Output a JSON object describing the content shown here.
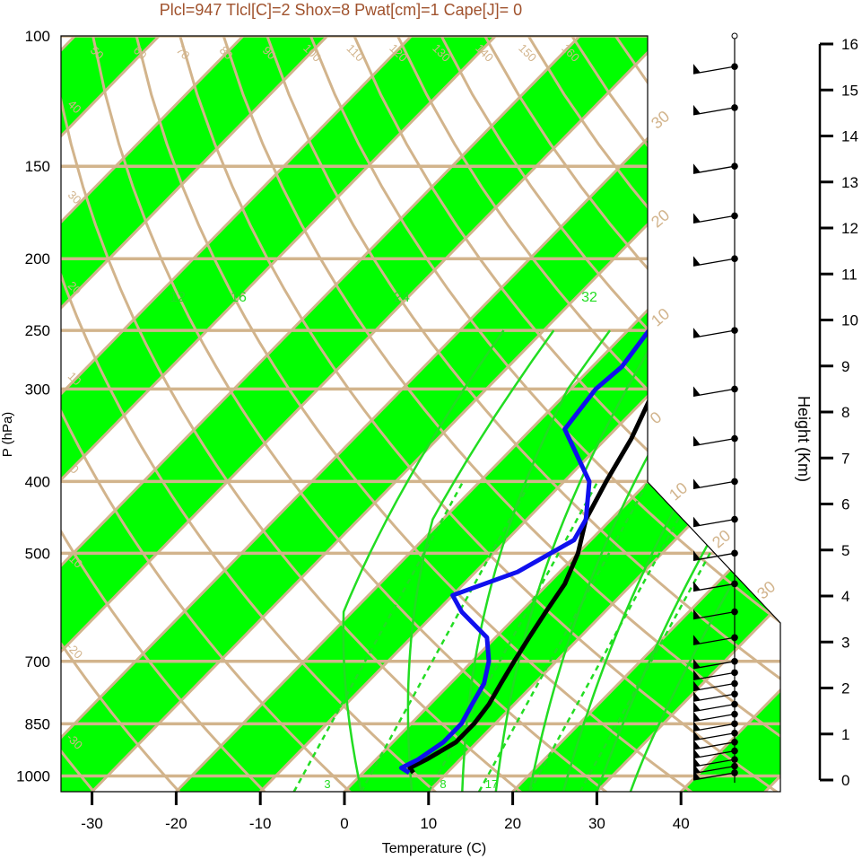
{
  "chart_data": {
    "type": "line",
    "subtitle": "Plcl=947 Tlcl[C]=2 Shox=8 Pwat[cm]=1 Cape[J]= 0",
    "xlabel": "Temperature (C)",
    "ylabel": "P (hPa)",
    "y2label": "Height (Km)",
    "x_ticks": [
      "-30",
      "-20",
      "-10",
      "0",
      "10",
      "20",
      "30",
      "40"
    ],
    "x_tick_values": [
      -30,
      -20,
      -10,
      0,
      10,
      20,
      30,
      40
    ],
    "p_ticks": [
      "100",
      "150",
      "200",
      "250",
      "300",
      "400",
      "500",
      "700",
      "850",
      "1000"
    ],
    "p_tick_values": [
      100,
      150,
      200,
      250,
      300,
      400,
      500,
      700,
      850,
      1000
    ],
    "height_ticks": [
      "0",
      "1",
      "2",
      "3",
      "4",
      "5",
      "6",
      "7",
      "8",
      "9",
      "10",
      "11",
      "12",
      "13",
      "14",
      "15",
      "16"
    ],
    "height_tick_values": [
      0,
      1,
      2,
      3,
      4,
      5,
      6,
      7,
      8,
      9,
      10,
      11,
      12,
      13,
      14,
      15,
      16
    ],
    "skew_labels": {
      "isotherms_upper": [
        "50",
        "60",
        "70",
        "80",
        "90",
        "100",
        "110",
        "120",
        "130",
        "140",
        "150",
        "160"
      ],
      "dry_adiabats_left": [
        "40",
        "30",
        "20",
        "10",
        "0",
        "-10",
        "-20",
        "-30"
      ],
      "dry_adiabats_right": [
        "30",
        "20",
        "10",
        "0",
        "10",
        "20",
        "30"
      ],
      "mixing_ratio": [
        "3",
        "8",
        "17"
      ],
      "moist_adiabats": [
        "12",
        "16",
        "24",
        "32"
      ]
    },
    "series": [
      {
        "name": "temperature",
        "color": "#000000",
        "points": [
          [
            6.0,
            990
          ],
          [
            5.0,
            975
          ],
          [
            6.0,
            950
          ],
          [
            7.5,
            900
          ],
          [
            7.5,
            850
          ],
          [
            7.0,
            800
          ],
          [
            6.0,
            750
          ],
          [
            5.0,
            700
          ],
          [
            4.0,
            650
          ],
          [
            3.0,
            600
          ],
          [
            2.0,
            550
          ],
          [
            0.0,
            500
          ],
          [
            -3.0,
            450
          ],
          [
            -5.0,
            400
          ],
          [
            -7.0,
            350
          ],
          [
            -10.0,
            300
          ],
          [
            -12.0,
            270
          ],
          [
            -13.0,
            250
          ],
          [
            -12.5,
            230
          ],
          [
            -11.0,
            210
          ],
          [
            -10.0,
            200
          ],
          [
            -8.0,
            180
          ],
          [
            -2.0,
            160
          ],
          [
            2.0,
            150
          ],
          [
            6.0,
            130
          ],
          [
            9.0,
            115
          ],
          [
            11.0,
            105
          ]
        ]
      },
      {
        "name": "dewpoint",
        "color": "#1010ee",
        "points": [
          [
            5.5,
            990
          ],
          [
            4.0,
            975
          ],
          [
            5.0,
            950
          ],
          [
            6.0,
            900
          ],
          [
            6.0,
            850
          ],
          [
            5.0,
            800
          ],
          [
            4.0,
            750
          ],
          [
            2.0,
            700
          ],
          [
            -1.0,
            650
          ],
          [
            -7.0,
            600
          ],
          [
            -10.0,
            570
          ],
          [
            -5.0,
            530
          ],
          [
            -2.0,
            480
          ],
          [
            -3.0,
            450
          ],
          [
            -7.0,
            400
          ],
          [
            -16.0,
            340
          ],
          [
            -17.0,
            300
          ],
          [
            -16.5,
            280
          ],
          [
            -17.5,
            250
          ],
          [
            -19.0,
            230
          ],
          [
            -20.0,
            200
          ],
          [
            -20.0,
            180
          ],
          [
            -18.0,
            160
          ],
          [
            -16.0,
            140
          ],
          [
            -12.0,
            120
          ],
          [
            -7.0,
            105
          ]
        ]
      }
    ],
    "wind_barbs_hpa": [
      990,
      970,
      950,
      925,
      900,
      875,
      850,
      825,
      800,
      775,
      750,
      725,
      700,
      650,
      600,
      550,
      500,
      450,
      400,
      350,
      300,
      250,
      200,
      175,
      150,
      125,
      110
    ],
    "colors": {
      "band": "#00ff00",
      "grid": "#d2b48c",
      "temperature": "#000000",
      "dewpoint": "#1010ee",
      "moist_adiabat": "#22dd22",
      "title": "#a0522d"
    }
  }
}
